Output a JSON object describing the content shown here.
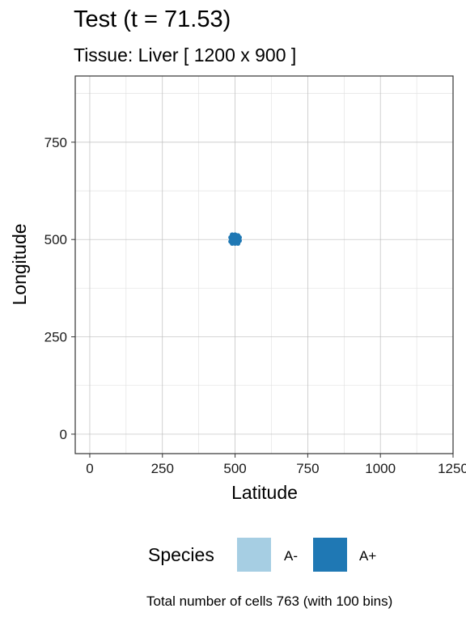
{
  "title": "Test (t = 71.53)",
  "subtitle": "Tissue: Liver [ 1200 x 900 ]",
  "caption": "Total number of cells 763 (with 100 bins)",
  "legend": {
    "title": "Species",
    "items": [
      {
        "label": "A-",
        "color": "#a6cee3"
      },
      {
        "label": "A+",
        "color": "#1f78b4"
      }
    ]
  },
  "chart_data": {
    "type": "scatter",
    "xlabel": "Latitude",
    "ylabel": "Longitude",
    "xlim": [
      -50,
      1250
    ],
    "ylim": [
      -50,
      920
    ],
    "x_ticks": [
      0,
      250,
      500,
      750,
      1000,
      1250
    ],
    "y_ticks": [
      0,
      250,
      500,
      750
    ],
    "grid": true,
    "legend_position": "bottom",
    "series": [
      {
        "name": "A+",
        "color": "#1f78b4",
        "points": [
          [
            490,
            512
          ],
          [
            500,
            512
          ],
          [
            510,
            510
          ],
          [
            485,
            505
          ],
          [
            495,
            505
          ],
          [
            505,
            505
          ],
          [
            515,
            505
          ],
          [
            490,
            500
          ],
          [
            500,
            500
          ],
          [
            510,
            500
          ],
          [
            485,
            495
          ],
          [
            495,
            495
          ],
          [
            505,
            495
          ],
          [
            515,
            497
          ],
          [
            490,
            490
          ],
          [
            500,
            490
          ],
          [
            510,
            490
          ],
          [
            498,
            508
          ],
          [
            508,
            498
          ],
          [
            493,
            498
          ]
        ]
      }
    ]
  }
}
